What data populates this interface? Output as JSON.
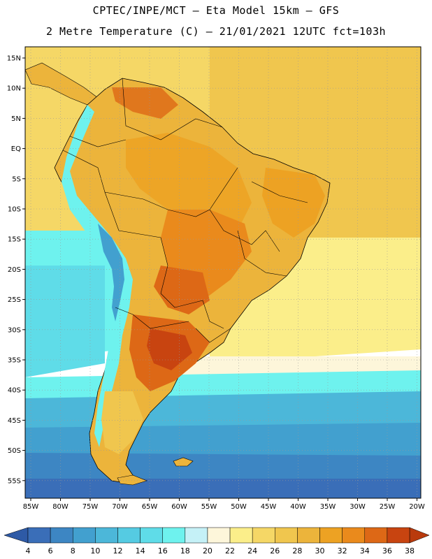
{
  "title": {
    "line1": "CPTEC/INPE/MCT –  Eta Model 15km – GFS",
    "line2": "2 Metre Temperature (C) – 21/01/2021 12UTC fct=103h"
  },
  "map": {
    "lat_labels": [
      "15N",
      "10N",
      "5N",
      "EQ",
      "5S",
      "10S",
      "15S",
      "20S",
      "25S",
      "30S",
      "35S",
      "40S",
      "45S",
      "50S",
      "55S"
    ],
    "lon_labels": [
      "85W",
      "80W",
      "75W",
      "70W",
      "65W",
      "60W",
      "55W",
      "50W",
      "45W",
      "40W",
      "35W",
      "30W",
      "25W",
      "20W"
    ]
  },
  "colorbar": {
    "labels": [
      "4",
      "6",
      "8",
      "10",
      "12",
      "14",
      "16",
      "18",
      "20",
      "22",
      "24",
      "26",
      "28",
      "30",
      "32",
      "34",
      "36",
      "38"
    ],
    "colors": [
      "#3a6eb8",
      "#3d86c3",
      "#42a0cf",
      "#4cb7d9",
      "#55cbe2",
      "#5fdce8",
      "#6ef2ee",
      "#c5f1f7",
      "#fdf6da",
      "#fbee8a",
      "#f5d766",
      "#f0c64e",
      "#ecb43b",
      "#eda223",
      "#ea8a1c",
      "#dd6816",
      "#c84410"
    ],
    "low_color": "#2e5aa6",
    "high_color": "#b93a0d"
  }
}
